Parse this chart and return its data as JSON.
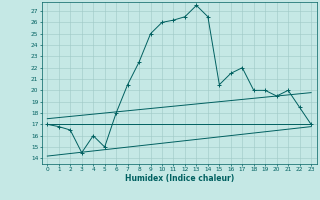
{
  "xlabel": "Humidex (Indice chaleur)",
  "xlim": [
    -0.5,
    23.5
  ],
  "ylim": [
    13.5,
    27.8
  ],
  "yticks": [
    14,
    15,
    16,
    17,
    18,
    19,
    20,
    21,
    22,
    23,
    24,
    25,
    26,
    27
  ],
  "xticks": [
    0,
    1,
    2,
    3,
    4,
    5,
    6,
    7,
    8,
    9,
    10,
    11,
    12,
    13,
    14,
    15,
    16,
    17,
    18,
    19,
    20,
    21,
    22,
    23
  ],
  "background_color": "#c5e8e5",
  "grid_color": "#9fc8c5",
  "line_color": "#006060",
  "line1_x": [
    0,
    1,
    2,
    3,
    4,
    5,
    6,
    7,
    8,
    9,
    10,
    11,
    12,
    13,
    14,
    15,
    16,
    17,
    18,
    19,
    20,
    21,
    22,
    23
  ],
  "line1_y": [
    17.0,
    16.8,
    16.5,
    14.5,
    16.0,
    15.0,
    18.0,
    20.5,
    22.5,
    25.0,
    26.0,
    26.2,
    26.5,
    27.5,
    26.5,
    20.5,
    21.5,
    22.0,
    20.0,
    20.0,
    19.5,
    20.0,
    18.5,
    17.0
  ],
  "line2_x": [
    0,
    23
  ],
  "line2_y": [
    17.0,
    17.0
  ],
  "line3_x": [
    0,
    23
  ],
  "line3_y": [
    17.5,
    19.8
  ],
  "line4_x": [
    0,
    23
  ],
  "line4_y": [
    14.2,
    16.8
  ]
}
